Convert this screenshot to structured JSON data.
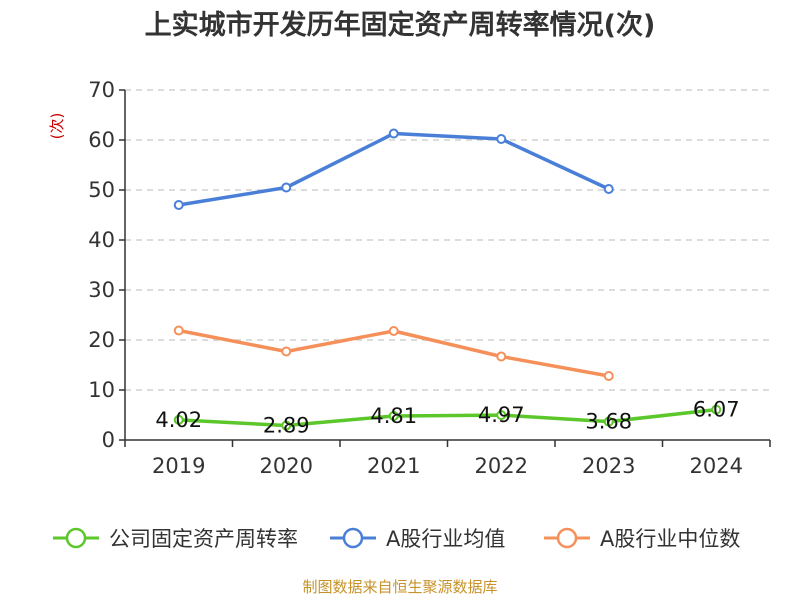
{
  "chart_data": {
    "type": "line",
    "title": "上实城市开发历年固定资产周转率情况(次)",
    "ylabel": "(次)",
    "xlabel": "",
    "categories": [
      "2019",
      "2020",
      "2021",
      "2022",
      "2023",
      "2024"
    ],
    "ylim": [
      0,
      70
    ],
    "yticks": [
      0,
      10,
      20,
      30,
      40,
      50,
      60,
      70
    ],
    "grid": true,
    "legend_position": "bottom",
    "series": [
      {
        "name": "公司固定资产周转率",
        "color": "#5cc72a",
        "values": [
          4.02,
          2.89,
          4.81,
          4.97,
          3.68,
          6.07
        ],
        "labels": [
          "4.02",
          "2.89",
          "4.81",
          "4.97",
          "3.68",
          "6.07"
        ]
      },
      {
        "name": "A股行业均值",
        "color": "#4a7fd8",
        "values": [
          47.0,
          50.5,
          61.3,
          60.2,
          50.2,
          null
        ]
      },
      {
        "name": "A股行业中位数",
        "color": "#f5905a",
        "values": [
          21.9,
          17.7,
          21.8,
          16.7,
          12.8,
          null
        ]
      }
    ]
  },
  "source": "制图数据来自恒生聚源数据库"
}
